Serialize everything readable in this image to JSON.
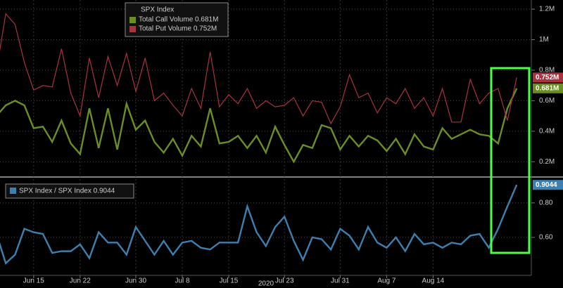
{
  "chart_data": [
    {
      "type": "line",
      "title": "SPX Index",
      "series": [
        {
          "name": "Total Call Volume 0.681M",
          "color": "#6b8e23",
          "values": [
            0.5,
            0.57,
            0.6,
            0.57,
            0.42,
            0.43,
            0.33,
            0.47,
            0.32,
            0.25,
            0.55,
            0.29,
            0.55,
            0.28,
            0.58,
            0.41,
            0.47,
            0.33,
            0.26,
            0.35,
            0.24,
            0.37,
            0.3,
            0.55,
            0.32,
            0.33,
            0.37,
            0.29,
            0.37,
            0.26,
            0.43,
            0.31,
            0.2,
            0.31,
            0.29,
            0.44,
            0.42,
            0.28,
            0.37,
            0.3,
            0.37,
            0.34,
            0.27,
            0.35,
            0.25,
            0.38,
            0.3,
            0.28,
            0.42,
            0.35,
            0.38,
            0.41,
            0.38,
            0.37,
            0.32,
            0.55,
            0.681
          ],
          "value_labels": [
            null,
            null,
            null,
            null,
            null,
            null,
            null,
            null,
            null,
            null,
            null,
            null,
            null,
            null,
            null,
            null,
            null,
            null,
            null,
            null,
            null,
            null,
            null,
            null,
            null,
            null,
            null,
            null,
            null,
            null,
            null,
            null,
            null,
            null,
            null,
            null,
            null,
            null,
            null,
            null,
            null,
            null,
            null,
            null,
            null,
            null,
            null,
            null,
            null,
            null,
            null,
            null,
            null,
            null,
            null,
            null,
            "0.681M"
          ]
        },
        {
          "name": "Total Put Volume 0.752M",
          "color": "#a8323e",
          "values": [
            0.8,
            1.17,
            1.1,
            0.85,
            0.67,
            0.7,
            0.69,
            0.94,
            0.65,
            0.5,
            0.88,
            0.62,
            0.89,
            0.7,
            0.91,
            0.66,
            0.88,
            0.6,
            0.65,
            0.57,
            0.5,
            0.68,
            0.55,
            0.92,
            0.56,
            0.64,
            0.58,
            0.68,
            0.55,
            0.6,
            0.56,
            0.57,
            0.62,
            0.5,
            0.6,
            0.59,
            0.45,
            0.56,
            0.77,
            0.62,
            0.65,
            0.52,
            0.62,
            0.58,
            0.68,
            0.55,
            0.62,
            0.5,
            0.68,
            0.46,
            0.46,
            0.74,
            0.58,
            0.65,
            0.68,
            0.47,
            0.752
          ],
          "value_labels": [
            null,
            null,
            null,
            null,
            null,
            null,
            null,
            null,
            null,
            null,
            null,
            null,
            null,
            null,
            null,
            null,
            null,
            null,
            null,
            null,
            null,
            null,
            null,
            null,
            null,
            null,
            null,
            null,
            null,
            null,
            null,
            null,
            null,
            null,
            null,
            null,
            null,
            null,
            null,
            null,
            null,
            null,
            null,
            null,
            null,
            null,
            null,
            null,
            null,
            null,
            null,
            null,
            null,
            null,
            null,
            null,
            "0.752M"
          ]
        }
      ],
      "ylim": [
        0.1,
        1.26
      ],
      "yticks": [
        {
          "value": 0.2,
          "label": "0.2M"
        },
        {
          "value": 0.4,
          "label": "0.4M"
        },
        {
          "value": 0.6,
          "label": "0.6M"
        },
        {
          "value": 0.8,
          "label": "0.8M"
        },
        {
          "value": 1,
          "label": "1M"
        },
        {
          "value": 1.2,
          "label": "1.2M"
        }
      ],
      "grid": true
    },
    {
      "type": "line",
      "categories": [
        null,
        null,
        null,
        null,
        "Jun 15",
        null,
        null,
        null,
        null,
        "Jun 22",
        null,
        null,
        null,
        null,
        null,
        "Jun 30",
        null,
        null,
        null,
        null,
        "Jul 8",
        null,
        null,
        null,
        null,
        "Jul 15",
        null,
        null,
        null,
        null,
        null,
        "Jul 23",
        null,
        null,
        null,
        null,
        null,
        "Jul 31",
        null,
        null,
        null,
        null,
        "Aug 7",
        null,
        null,
        null,
        null,
        "Aug 14",
        null,
        null,
        null,
        null,
        null,
        null,
        null,
        null,
        null
      ],
      "xlabel": "2020",
      "series": [
        {
          "name": "SPX Index / SPX Index 0.9044",
          "color": "#3d7fae",
          "values": [
            0.62,
            0.45,
            0.5,
            0.65,
            0.63,
            0.62,
            0.51,
            0.52,
            0.52,
            0.56,
            0.48,
            0.63,
            0.57,
            0.57,
            0.5,
            0.66,
            0.58,
            0.5,
            0.58,
            0.5,
            0.57,
            0.58,
            0.54,
            0.53,
            0.57,
            0.57,
            0.57,
            0.78,
            0.63,
            0.55,
            0.66,
            0.72,
            0.58,
            0.47,
            0.6,
            0.59,
            0.53,
            0.65,
            0.61,
            0.53,
            0.66,
            0.57,
            0.54,
            0.6,
            0.52,
            0.62,
            0.56,
            0.57,
            0.54,
            0.57,
            0.56,
            0.61,
            0.62,
            0.54,
            0.65,
            0.78,
            0.9044
          ]
        }
      ],
      "ylim": [
        0.38,
        0.95
      ],
      "yticks": [
        {
          "value": 0.6,
          "label": "0.60"
        },
        {
          "value": 0.8,
          "label": "0.80"
        }
      ],
      "grid": true
    }
  ]
}
